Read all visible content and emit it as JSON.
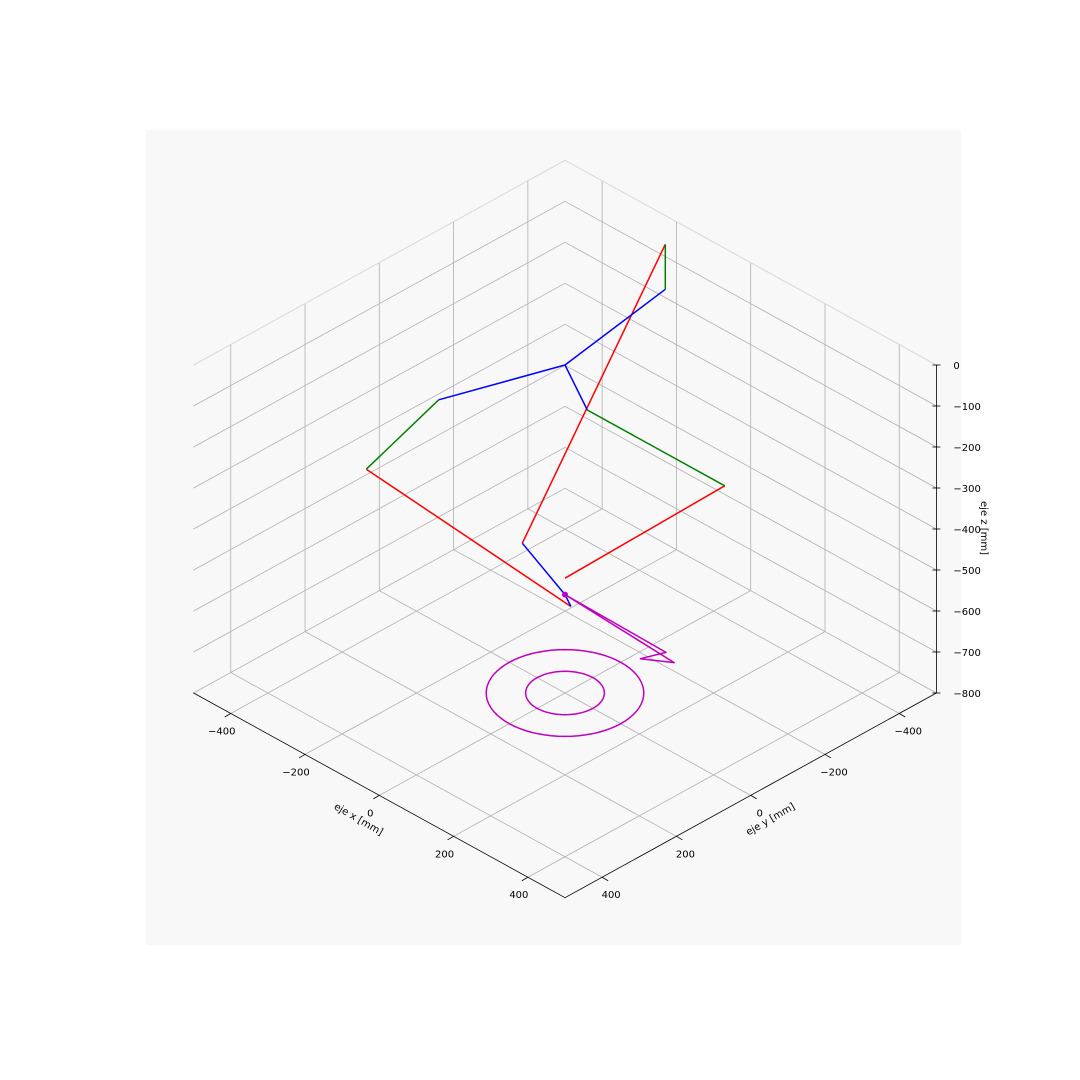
{
  "chart_data": {
    "type": "line3d",
    "title": "",
    "xlabel": "eje x [mm]",
    "ylabel": "eje y [mm]",
    "zlabel": "eje z [mm]",
    "xlim": [
      -500,
      500
    ],
    "ylim": [
      -500,
      500
    ],
    "zlim": [
      -800,
      0
    ],
    "x_ticks": [
      "−400",
      "−200",
      "0",
      "200",
      "400"
    ],
    "y_ticks": [
      "−400",
      "−200",
      "0",
      "200",
      "400"
    ],
    "z_ticks": [
      "0",
      "−100",
      "−200",
      "−300",
      "−400",
      "−500",
      "−600",
      "−700",
      "−800"
    ],
    "grid": true,
    "colors": {
      "background": "#f8f8f8",
      "grid": "#b0b0b0",
      "lower_arm": "#ff0000",
      "upper_arm": "#008000",
      "base": "#0000ff",
      "platform": "#bf00bf"
    },
    "series": [
      {
        "color": "red",
        "points": [
          [
            -135,
            -20,
            -512
          ],
          [
            -200,
            -470,
            -40
          ]
        ]
      },
      {
        "color": "red",
        "points": [
          [
            42,
            26,
            -555
          ],
          [
            -65,
            470,
            -52
          ]
        ]
      },
      {
        "color": "red",
        "points": [
          [
            -30,
            -30,
            -550
          ],
          [
            430,
            0,
            -80
          ]
        ]
      },
      {
        "color": "green",
        "points": [
          [
            -200,
            -470,
            -40
          ],
          [
            -50,
            -320,
            0
          ]
        ]
      },
      {
        "color": "green",
        "points": [
          [
            -65,
            470,
            -52
          ],
          [
            -85,
            255,
            0
          ]
        ]
      },
      {
        "color": "green",
        "points": [
          [
            430,
            0,
            -80
          ],
          [
            140,
            80,
            0
          ]
        ]
      },
      {
        "color": "blue",
        "points": [
          [
            0,
            0,
            0
          ],
          [
            -50,
            -320,
            0
          ]
        ]
      },
      {
        "color": "blue",
        "points": [
          [
            0,
            0,
            0
          ],
          [
            -85,
            255,
            0
          ]
        ]
      },
      {
        "color": "blue",
        "points": [
          [
            0,
            0,
            0
          ],
          [
            140,
            80,
            0
          ]
        ]
      },
      {
        "color": "blue",
        "points": [
          [
            -135,
            -20,
            -512
          ],
          [
            0,
            0,
            -560
          ],
          [
            42,
            26,
            -555
          ]
        ]
      },
      {
        "color": "magenta",
        "points": [
          [
            0,
            0,
            -560
          ],
          [
            237,
            -57,
            -636
          ],
          [
            199,
            -4,
            -619
          ],
          [
            224,
            -48,
            -613
          ],
          [
            0,
            0,
            -560
          ]
        ]
      },
      {
        "color": "magenta",
        "shape": "circle",
        "center": [
          0,
          0,
          -800
        ],
        "radius": 150
      },
      {
        "color": "magenta",
        "shape": "circle",
        "center": [
          0,
          0,
          -800
        ],
        "radius": 75
      },
      {
        "color": "magenta",
        "shape": "marker",
        "points": [
          [
            0,
            0,
            -560
          ]
        ]
      }
    ]
  }
}
